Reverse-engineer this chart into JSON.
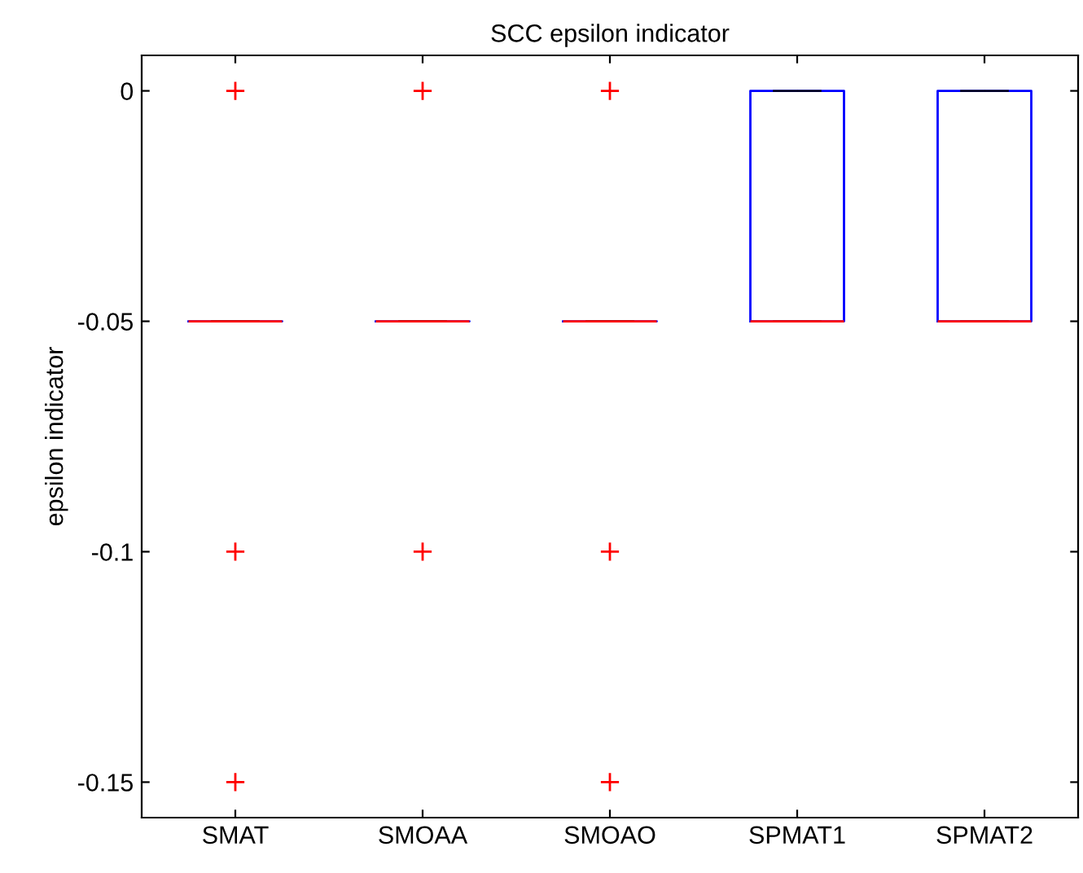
{
  "chart_data": {
    "type": "box",
    "title": "SCC epsilon indicator",
    "ylabel": "epsilon indicator",
    "categories": [
      "SMAT",
      "SMOAA",
      "SMOAO",
      "SPMAT1",
      "SPMAT2"
    ],
    "series": [
      {
        "color": "#0000ff",
        "boxes": [
          {
            "low": -0.05,
            "q1": -0.05,
            "median": -0.05,
            "q3": -0.05,
            "high": -0.05,
            "outliers": [
              0,
              -0.1,
              -0.15
            ]
          },
          {
            "low": -0.05,
            "q1": -0.05,
            "median": -0.05,
            "q3": -0.05,
            "high": -0.05,
            "outliers": [
              0,
              -0.1
            ]
          },
          {
            "low": -0.05,
            "q1": -0.05,
            "median": -0.05,
            "q3": -0.05,
            "high": -0.05,
            "outliers": [
              0,
              -0.1,
              -0.15
            ]
          },
          {
            "low": -0.05,
            "q1": -0.05,
            "median": -0.05,
            "q3": 0,
            "high": 0
          },
          {
            "low": -0.05,
            "q1": -0.05,
            "median": -0.05,
            "q3": 0,
            "high": 0
          }
        ]
      }
    ],
    "ylim": [
      -0.1577,
      0.0077
    ],
    "yticks": [
      {
        "value": -0.15,
        "label": "-0.15"
      },
      {
        "value": -0.1,
        "label": "-0.1"
      },
      {
        "value": -0.05,
        "label": "-0.05"
      },
      0
    ],
    "marker": "cross",
    "grid": false,
    "legend": false
  }
}
